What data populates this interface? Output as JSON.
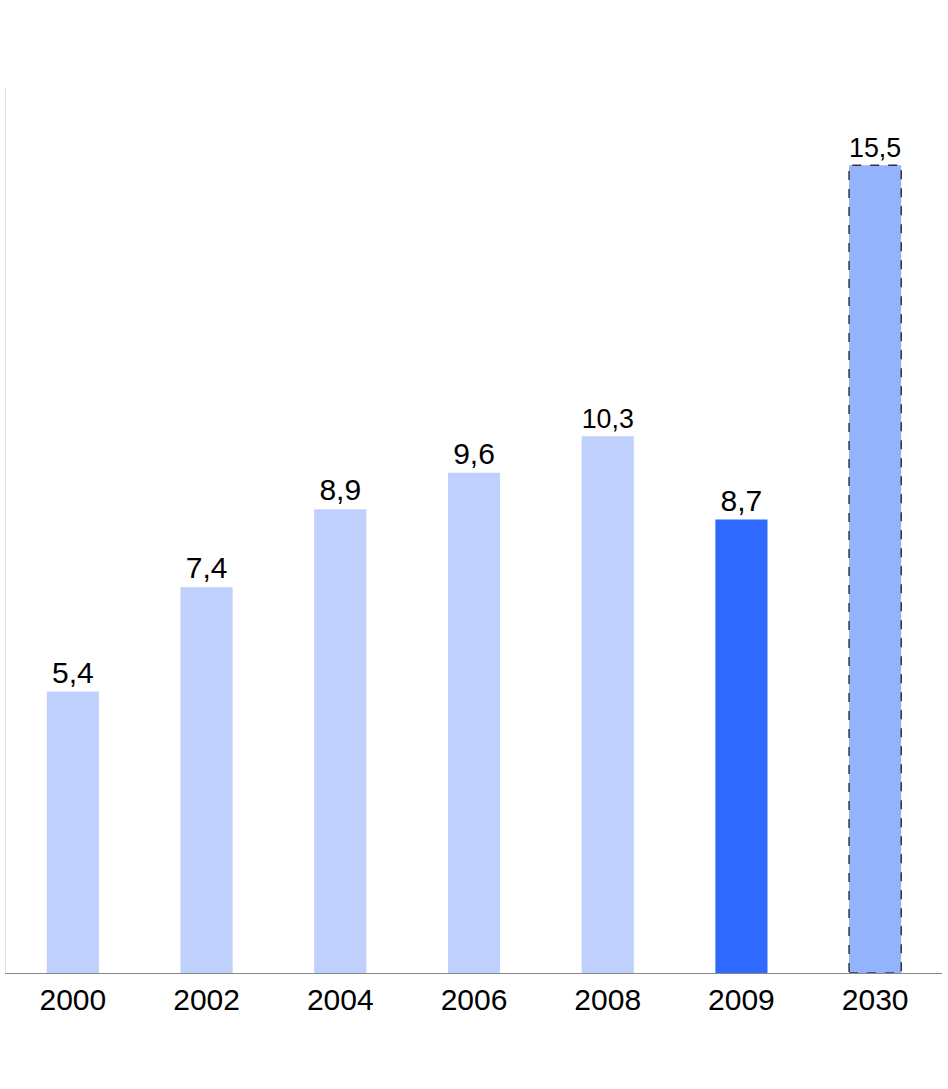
{
  "chart_data": {
    "type": "bar",
    "categories": [
      "2000",
      "2002",
      "2004",
      "2006",
      "2008",
      "2009",
      "2030"
    ],
    "values": [
      5.4,
      7.4,
      8.9,
      9.6,
      10.3,
      8.7,
      15.5
    ],
    "value_labels": [
      "5,4",
      "7,4",
      "8,9",
      "9,6",
      "10,3",
      "8,7",
      "15,5"
    ],
    "colors": [
      "#bfd0fc",
      "#bfd0fc",
      "#bfd0fc",
      "#bfd0fc",
      "#bfd0fc",
      "#2f69ff",
      "#93b3fc"
    ],
    "ylim": [
      0,
      17
    ],
    "yticks": [],
    "grid": false,
    "data_labels": true,
    "tick_labels": "x"
  }
}
